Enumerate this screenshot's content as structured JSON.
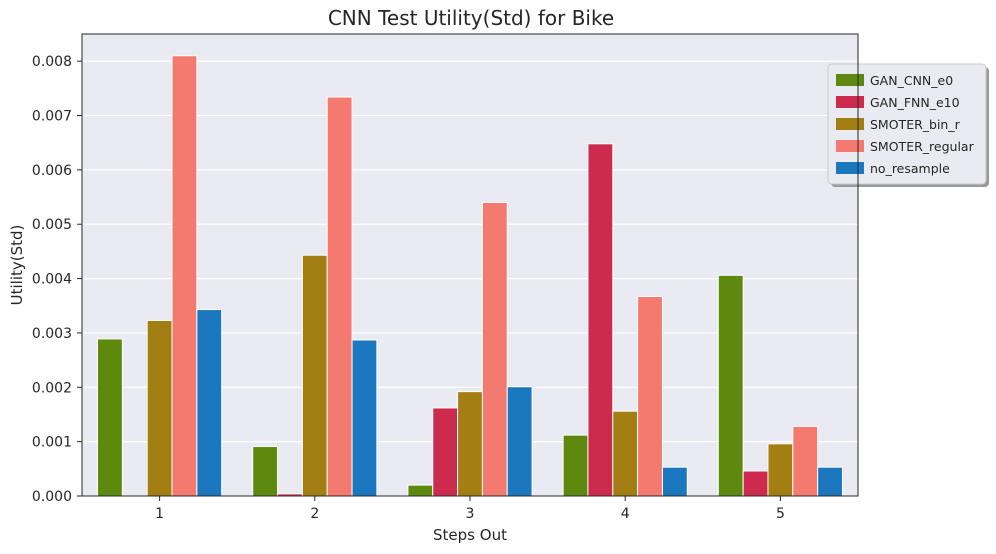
{
  "chart_data": {
    "type": "bar",
    "title": "CNN Test Utility(Std) for Bike",
    "xlabel": "Steps Out",
    "ylabel": "Utility(Std)",
    "categories": [
      "1",
      "2",
      "3",
      "4",
      "5"
    ],
    "ylim": [
      0,
      0.0085
    ],
    "yticks": [
      "0.000",
      "0.001",
      "0.002",
      "0.003",
      "0.004",
      "0.005",
      "0.006",
      "0.007",
      "0.008"
    ],
    "grid": true,
    "legend_position": "upper-right, outside plot",
    "series": [
      {
        "name": "GAN_CNN_e0",
        "color": "#5d8a0e",
        "values": [
          0.00289,
          0.00091,
          0.0002,
          0.00112,
          0.00406
        ]
      },
      {
        "name": "GAN_FNN_e10",
        "color": "#cc2b4e",
        "values": [
          0.0,
          4e-05,
          0.00162,
          0.00648,
          0.00046
        ]
      },
      {
        "name": "SMOTER_bin_r",
        "color": "#a37e12",
        "values": [
          0.00323,
          0.00443,
          0.00192,
          0.00156,
          0.00096
        ]
      },
      {
        "name": "SMOTER_regular",
        "color": "#f4796f",
        "values": [
          0.0081,
          0.00734,
          0.0054,
          0.00367,
          0.00128
        ]
      },
      {
        "name": "no_resample",
        "color": "#1b78be",
        "values": [
          0.00343,
          0.00287,
          0.00201,
          0.00053,
          0.00053
        ]
      }
    ]
  }
}
